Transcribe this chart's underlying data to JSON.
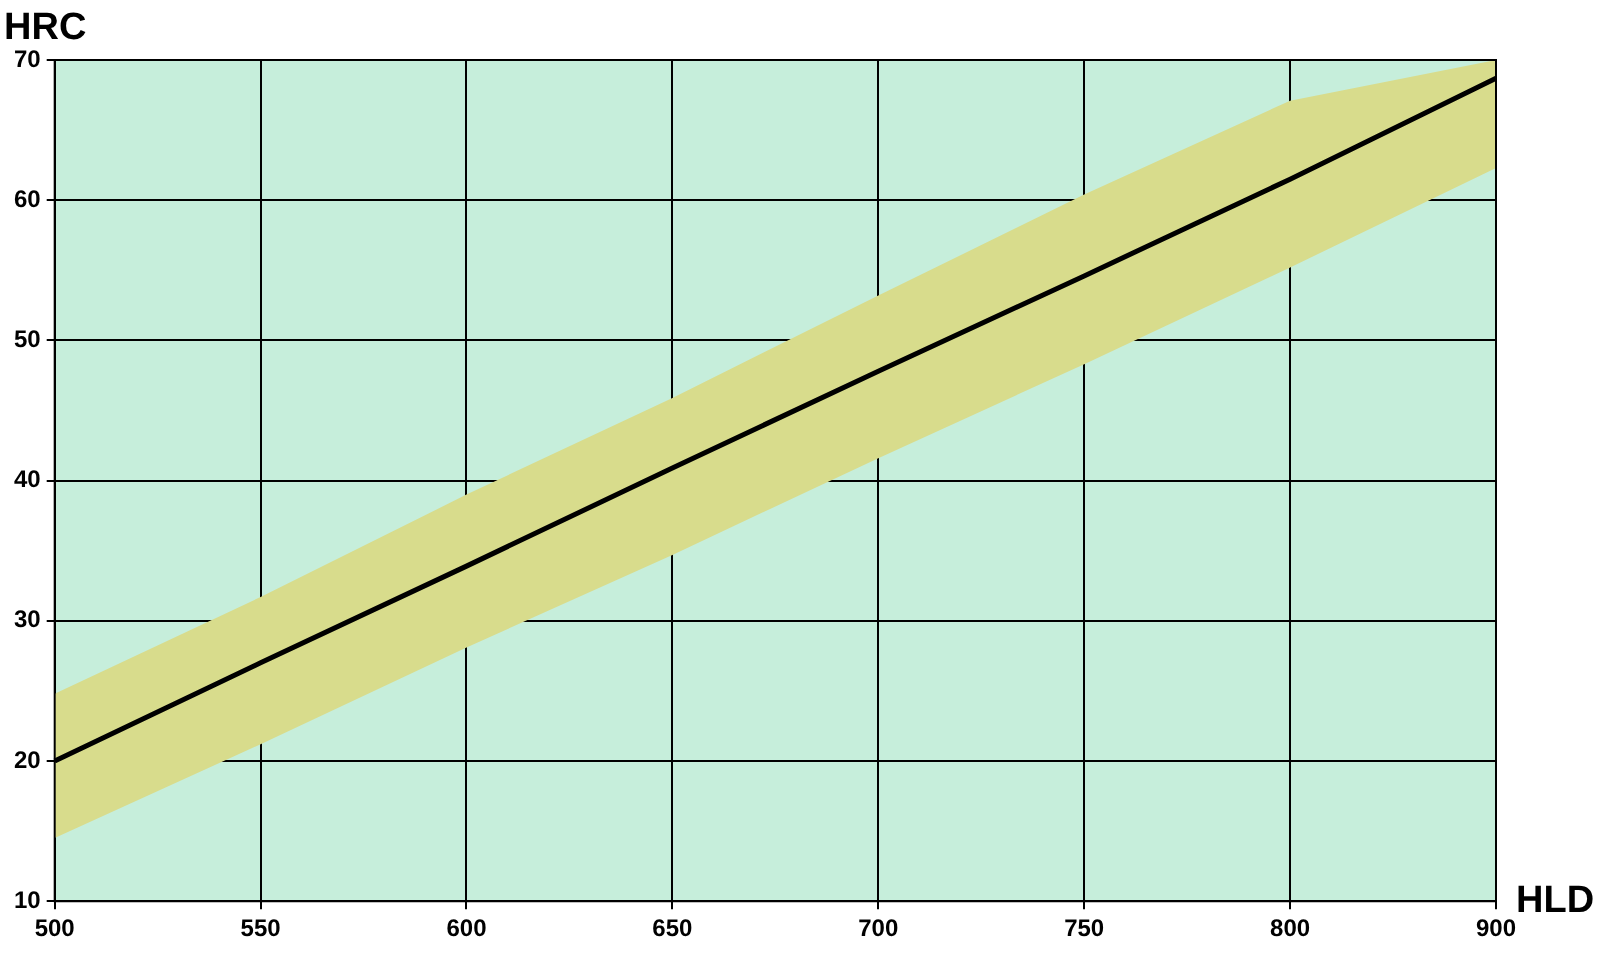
{
  "chart_data": {
    "type": "line",
    "xlabel": "HLD",
    "ylabel": "HRC",
    "categories": [
      "500",
      "550",
      "600",
      "650",
      "700",
      "750",
      "800",
      "900"
    ],
    "series": [
      {
        "color": "#000000",
        "values": [
          20,
          27,
          33.9,
          40.9,
          47.8,
          54.6,
          61.5,
          68.7
        ],
        "lower": [
          14.5,
          21.2,
          28.1,
          34.7,
          41.6,
          48.3,
          55.2,
          62.3
        ],
        "upper": [
          24.8,
          31.7,
          39,
          45.9,
          53.2,
          60.4,
          67.1,
          70
        ]
      }
    ],
    "ylim": [
      10,
      70
    ],
    "yticks": [
      10,
      20,
      30,
      40,
      50,
      60,
      70
    ],
    "grid": true,
    "legend": false,
    "marker": "none",
    "line_style": "solid"
  }
}
